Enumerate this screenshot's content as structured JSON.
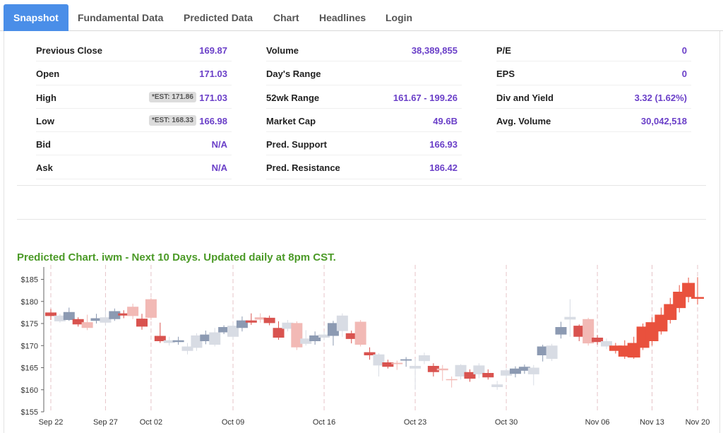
{
  "tabs": [
    "Snapshot",
    "Fundamental Data",
    "Predicted Data",
    "Chart",
    "Headlines",
    "Login"
  ],
  "stats": {
    "col1": [
      {
        "label": "Previous Close",
        "value": "169.87"
      },
      {
        "label": "Open",
        "value": "171.03"
      },
      {
        "label": "High",
        "value": "171.03",
        "est": "*EST: 171.86"
      },
      {
        "label": "Low",
        "value": "166.98",
        "est": "*EST: 168.33"
      },
      {
        "label": "Bid",
        "value": "N/A"
      },
      {
        "label": "Ask",
        "value": "N/A"
      }
    ],
    "col2": [
      {
        "label": "Volume",
        "value": "38,389,855"
      },
      {
        "label": "Day's Range",
        "value": ""
      },
      {
        "label": "52wk Range",
        "value": "161.67 - 199.26"
      },
      {
        "label": "Market Cap",
        "value": "49.6B"
      },
      {
        "label": "Pred. Support",
        "value": "166.93"
      },
      {
        "label": "Pred. Resistance",
        "value": "186.42"
      }
    ],
    "col3": [
      {
        "label": "P/E",
        "value": "0"
      },
      {
        "label": "EPS",
        "value": "0"
      },
      {
        "label": "Div and Yield",
        "value": "3.32 (1.62%)"
      },
      {
        "label": "Avg. Volume",
        "value": "30,042,518"
      }
    ]
  },
  "chart_title": "Predicted Chart. iwm - Next 10 Days. Updated daily at 8pm CST.",
  "colors": {
    "up_hist": "#8c9ab2",
    "down_hist": "#d9534f",
    "up_pred_light": "#d8dce4",
    "down_pred_light": "#f2b9b5",
    "forecast": "#e9513d",
    "accent": "#6a3fc8",
    "title": "#4b9a27"
  },
  "chart_data": {
    "type": "candlestick",
    "y_ticks": [
      "$185",
      "$180",
      "$175",
      "$170",
      "$165",
      "$160",
      "$155"
    ],
    "ylim": [
      155,
      187
    ],
    "x_ticks": [
      "Sep 22",
      "Sep 27",
      "Oct 02",
      "Oct 09",
      "Oct 16",
      "Oct 23",
      "Oct 30",
      "Nov 06",
      "Nov 13",
      "Nov 20"
    ],
    "candles": [
      {
        "o": 176.7,
        "c": 177.5,
        "h": 178.3,
        "l": 175.8,
        "k": "down"
      },
      {
        "o": 175.5,
        "c": 176.8,
        "h": 177.2,
        "l": 175.2,
        "k": "upPale"
      },
      {
        "o": 175.8,
        "c": 177.6,
        "h": 178.6,
        "l": 175.6,
        "k": "up"
      },
      {
        "o": 174.8,
        "c": 176.0,
        "h": 176.4,
        "l": 174.3,
        "k": "down"
      },
      {
        "o": 174.0,
        "c": 175.3,
        "h": 177.0,
        "l": 173.5,
        "k": "downPale"
      },
      {
        "o": 175.6,
        "c": 176.2,
        "h": 177.2,
        "l": 175.0,
        "k": "up"
      },
      {
        "o": 175.2,
        "c": 176.4,
        "h": 178.0,
        "l": 174.5,
        "k": "upPale"
      },
      {
        "o": 176.0,
        "c": 177.8,
        "h": 178.4,
        "l": 175.6,
        "k": "up"
      },
      {
        "o": 176.8,
        "c": 177.3,
        "h": 178.0,
        "l": 176.2,
        "k": "down"
      },
      {
        "o": 176.7,
        "c": 178.8,
        "h": 179.5,
        "l": 176.0,
        "k": "downPale"
      },
      {
        "o": 174.3,
        "c": 176.1,
        "h": 177.2,
        "l": 173.6,
        "k": "down"
      },
      {
        "o": 176.3,
        "c": 180.5,
        "h": 180.8,
        "l": 175.8,
        "k": "downPale"
      },
      {
        "o": 171.0,
        "c": 172.2,
        "h": 175.2,
        "l": 170.6,
        "k": "down"
      },
      {
        "o": 170.6,
        "c": 171.2,
        "h": 172.0,
        "l": 170.0,
        "k": "upPale"
      },
      {
        "o": 170.8,
        "c": 171.2,
        "h": 172.0,
        "l": 170.2,
        "k": "up"
      },
      {
        "o": 168.8,
        "c": 169.8,
        "h": 170.6,
        "l": 168.0,
        "k": "upPale"
      },
      {
        "o": 169.5,
        "c": 172.3,
        "h": 172.8,
        "l": 168.8,
        "k": "upPale"
      },
      {
        "o": 171.0,
        "c": 172.5,
        "h": 173.4,
        "l": 170.3,
        "k": "up"
      },
      {
        "o": 170.2,
        "c": 173.0,
        "h": 174.0,
        "l": 169.8,
        "k": "upPale"
      },
      {
        "o": 173.0,
        "c": 174.2,
        "h": 174.6,
        "l": 172.6,
        "k": "up"
      },
      {
        "o": 172.0,
        "c": 174.5,
        "h": 175.3,
        "l": 171.4,
        "k": "upPale"
      },
      {
        "o": 174.0,
        "c": 175.7,
        "h": 176.6,
        "l": 173.2,
        "k": "up"
      },
      {
        "o": 175.2,
        "c": 175.7,
        "h": 177.3,
        "l": 174.7,
        "k": "down"
      },
      {
        "o": 175.9,
        "c": 176.4,
        "h": 177.3,
        "l": 175.2,
        "k": "downPale"
      },
      {
        "o": 175.1,
        "c": 176.3,
        "h": 176.8,
        "l": 174.6,
        "k": "down"
      },
      {
        "o": 171.8,
        "c": 174.0,
        "h": 175.5,
        "l": 171.3,
        "k": "down"
      },
      {
        "o": 173.8,
        "c": 175.2,
        "h": 175.8,
        "l": 173.2,
        "k": "upPale"
      },
      {
        "o": 169.6,
        "c": 175.1,
        "h": 175.5,
        "l": 169.0,
        "k": "downPale"
      },
      {
        "o": 170.4,
        "c": 171.6,
        "h": 173.5,
        "l": 170.0,
        "k": "upPale"
      },
      {
        "o": 171.0,
        "c": 172.3,
        "h": 173.2,
        "l": 170.2,
        "k": "up"
      },
      {
        "o": 171.8,
        "c": 172.5,
        "h": 173.2,
        "l": 171.2,
        "k": "upPale"
      },
      {
        "o": 172.2,
        "c": 175.1,
        "h": 175.6,
        "l": 170.0,
        "k": "up"
      },
      {
        "o": 173.3,
        "c": 176.8,
        "h": 177.3,
        "l": 172.0,
        "k": "upPale"
      },
      {
        "o": 171.5,
        "c": 172.8,
        "h": 173.4,
        "l": 170.5,
        "k": "down"
      },
      {
        "o": 170.2,
        "c": 175.4,
        "h": 175.8,
        "l": 169.8,
        "k": "downPale"
      },
      {
        "o": 167.8,
        "c": 168.5,
        "h": 169.6,
        "l": 166.8,
        "k": "down"
      },
      {
        "o": 165.5,
        "c": 168.0,
        "h": 168.3,
        "l": 163.0,
        "k": "upPale"
      },
      {
        "o": 165.2,
        "c": 166.2,
        "h": 166.8,
        "l": 164.8,
        "k": "down"
      },
      {
        "o": 165.8,
        "c": 166.1,
        "h": 166.6,
        "l": 164.5,
        "k": "downPale"
      },
      {
        "o": 166.6,
        "c": 166.9,
        "h": 167.4,
        "l": 165.2,
        "k": "up"
      },
      {
        "o": 164.8,
        "c": 165.4,
        "h": 167.0,
        "l": 160.0,
        "k": "upPale"
      },
      {
        "o": 166.5,
        "c": 167.8,
        "h": 168.4,
        "l": 165.8,
        "k": "upPale"
      },
      {
        "o": 164.0,
        "c": 165.4,
        "h": 166.0,
        "l": 163.0,
        "k": "down"
      },
      {
        "o": 164.4,
        "c": 164.8,
        "h": 165.6,
        "l": 162.0,
        "k": "downPale"
      },
      {
        "o": 162.2,
        "c": 162.4,
        "h": 163.0,
        "l": 160.5,
        "k": "downPale"
      },
      {
        "o": 163.0,
        "c": 165.6,
        "h": 165.8,
        "l": 162.3,
        "k": "upPale"
      },
      {
        "o": 162.5,
        "c": 164.0,
        "h": 164.6,
        "l": 161.8,
        "k": "down"
      },
      {
        "o": 163.5,
        "c": 165.5,
        "h": 166.0,
        "l": 162.6,
        "k": "upPale"
      },
      {
        "o": 162.8,
        "c": 163.8,
        "h": 164.6,
        "l": 162.3,
        "k": "down"
      },
      {
        "o": 160.6,
        "c": 161.2,
        "h": 162.0,
        "l": 160.0,
        "k": "upPale"
      },
      {
        "o": 163.2,
        "c": 164.4,
        "h": 164.8,
        "l": 162.6,
        "k": "upPale"
      },
      {
        "o": 163.6,
        "c": 164.8,
        "h": 165.3,
        "l": 162.8,
        "k": "up"
      },
      {
        "o": 164.3,
        "c": 165.2,
        "h": 165.7,
        "l": 163.6,
        "k": "up"
      },
      {
        "o": 163.5,
        "c": 165.0,
        "h": 165.6,
        "l": 161.0,
        "k": "upPale"
      },
      {
        "o": 167.8,
        "c": 169.8,
        "h": 170.2,
        "l": 166.4,
        "k": "up"
      },
      {
        "o": 167.0,
        "c": 170.0,
        "h": 170.4,
        "l": 166.5,
        "k": "upPale"
      },
      {
        "o": 172.5,
        "c": 174.2,
        "h": 175.4,
        "l": 171.6,
        "k": "up"
      },
      {
        "o": 175.9,
        "c": 176.5,
        "h": 180.5,
        "l": 172.0,
        "k": "upPale"
      },
      {
        "o": 172.0,
        "c": 174.5,
        "h": 174.8,
        "l": 171.0,
        "k": "down"
      },
      {
        "o": 170.5,
        "c": 176.0,
        "h": 176.3,
        "l": 170.0,
        "k": "downPale"
      },
      {
        "o": 170.8,
        "c": 171.8,
        "h": 172.4,
        "l": 170.2,
        "k": "down"
      },
      {
        "o": 169.8,
        "c": 171.0,
        "h": 171.6,
        "l": 169.2,
        "k": "upPale"
      },
      {
        "o": 168.8,
        "c": 170.0,
        "h": 170.6,
        "l": 168.2,
        "k": "f"
      },
      {
        "o": 167.5,
        "c": 170.0,
        "h": 171.2,
        "l": 167.0,
        "k": "f"
      },
      {
        "o": 167.3,
        "c": 170.6,
        "h": 172.0,
        "l": 167.0,
        "k": "f"
      },
      {
        "o": 169.5,
        "c": 174.3,
        "h": 175.0,
        "l": 169.0,
        "k": "f"
      },
      {
        "o": 171.0,
        "c": 175.3,
        "h": 176.4,
        "l": 170.0,
        "k": "f"
      },
      {
        "o": 173.2,
        "c": 177.0,
        "h": 178.6,
        "l": 172.5,
        "k": "f"
      },
      {
        "o": 175.8,
        "c": 179.4,
        "h": 180.8,
        "l": 175.0,
        "k": "f"
      },
      {
        "o": 178.5,
        "c": 182.2,
        "h": 183.7,
        "l": 177.5,
        "k": "f"
      },
      {
        "o": 181.0,
        "c": 184.2,
        "h": 185.4,
        "l": 179.8,
        "k": "f"
      },
      {
        "o": 180.6,
        "c": 181.0,
        "h": 185.5,
        "l": 179.3,
        "k": "f"
      }
    ]
  }
}
